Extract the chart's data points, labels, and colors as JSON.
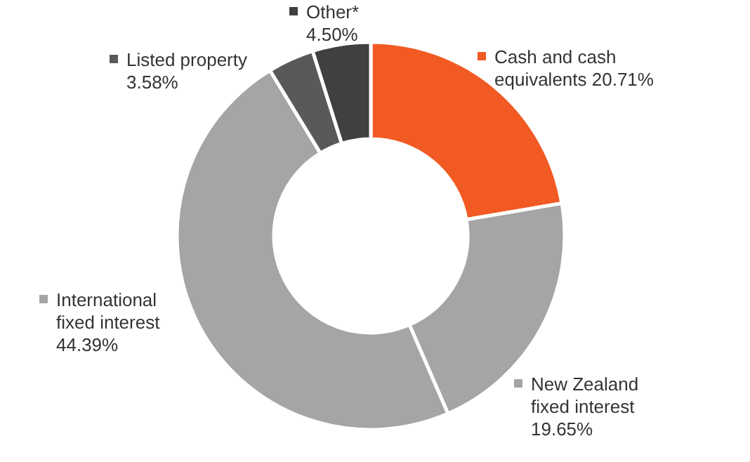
{
  "chart_data": {
    "type": "donut",
    "categories": [
      "Cash and cash equivalents",
      "New Zealand fixed interest",
      "International fixed interest",
      "Listed property",
      "Other*"
    ],
    "values": [
      20.71,
      19.65,
      44.39,
      3.58,
      4.5
    ],
    "value_labels": [
      "20.71%",
      "19.65%",
      "44.39%",
      "3.58%",
      "4.50%"
    ],
    "colors": [
      "#f15a22",
      "#a5a5a5",
      "#a5a5a5",
      "#595959",
      "#404040"
    ],
    "legend": "top left"
  }
}
